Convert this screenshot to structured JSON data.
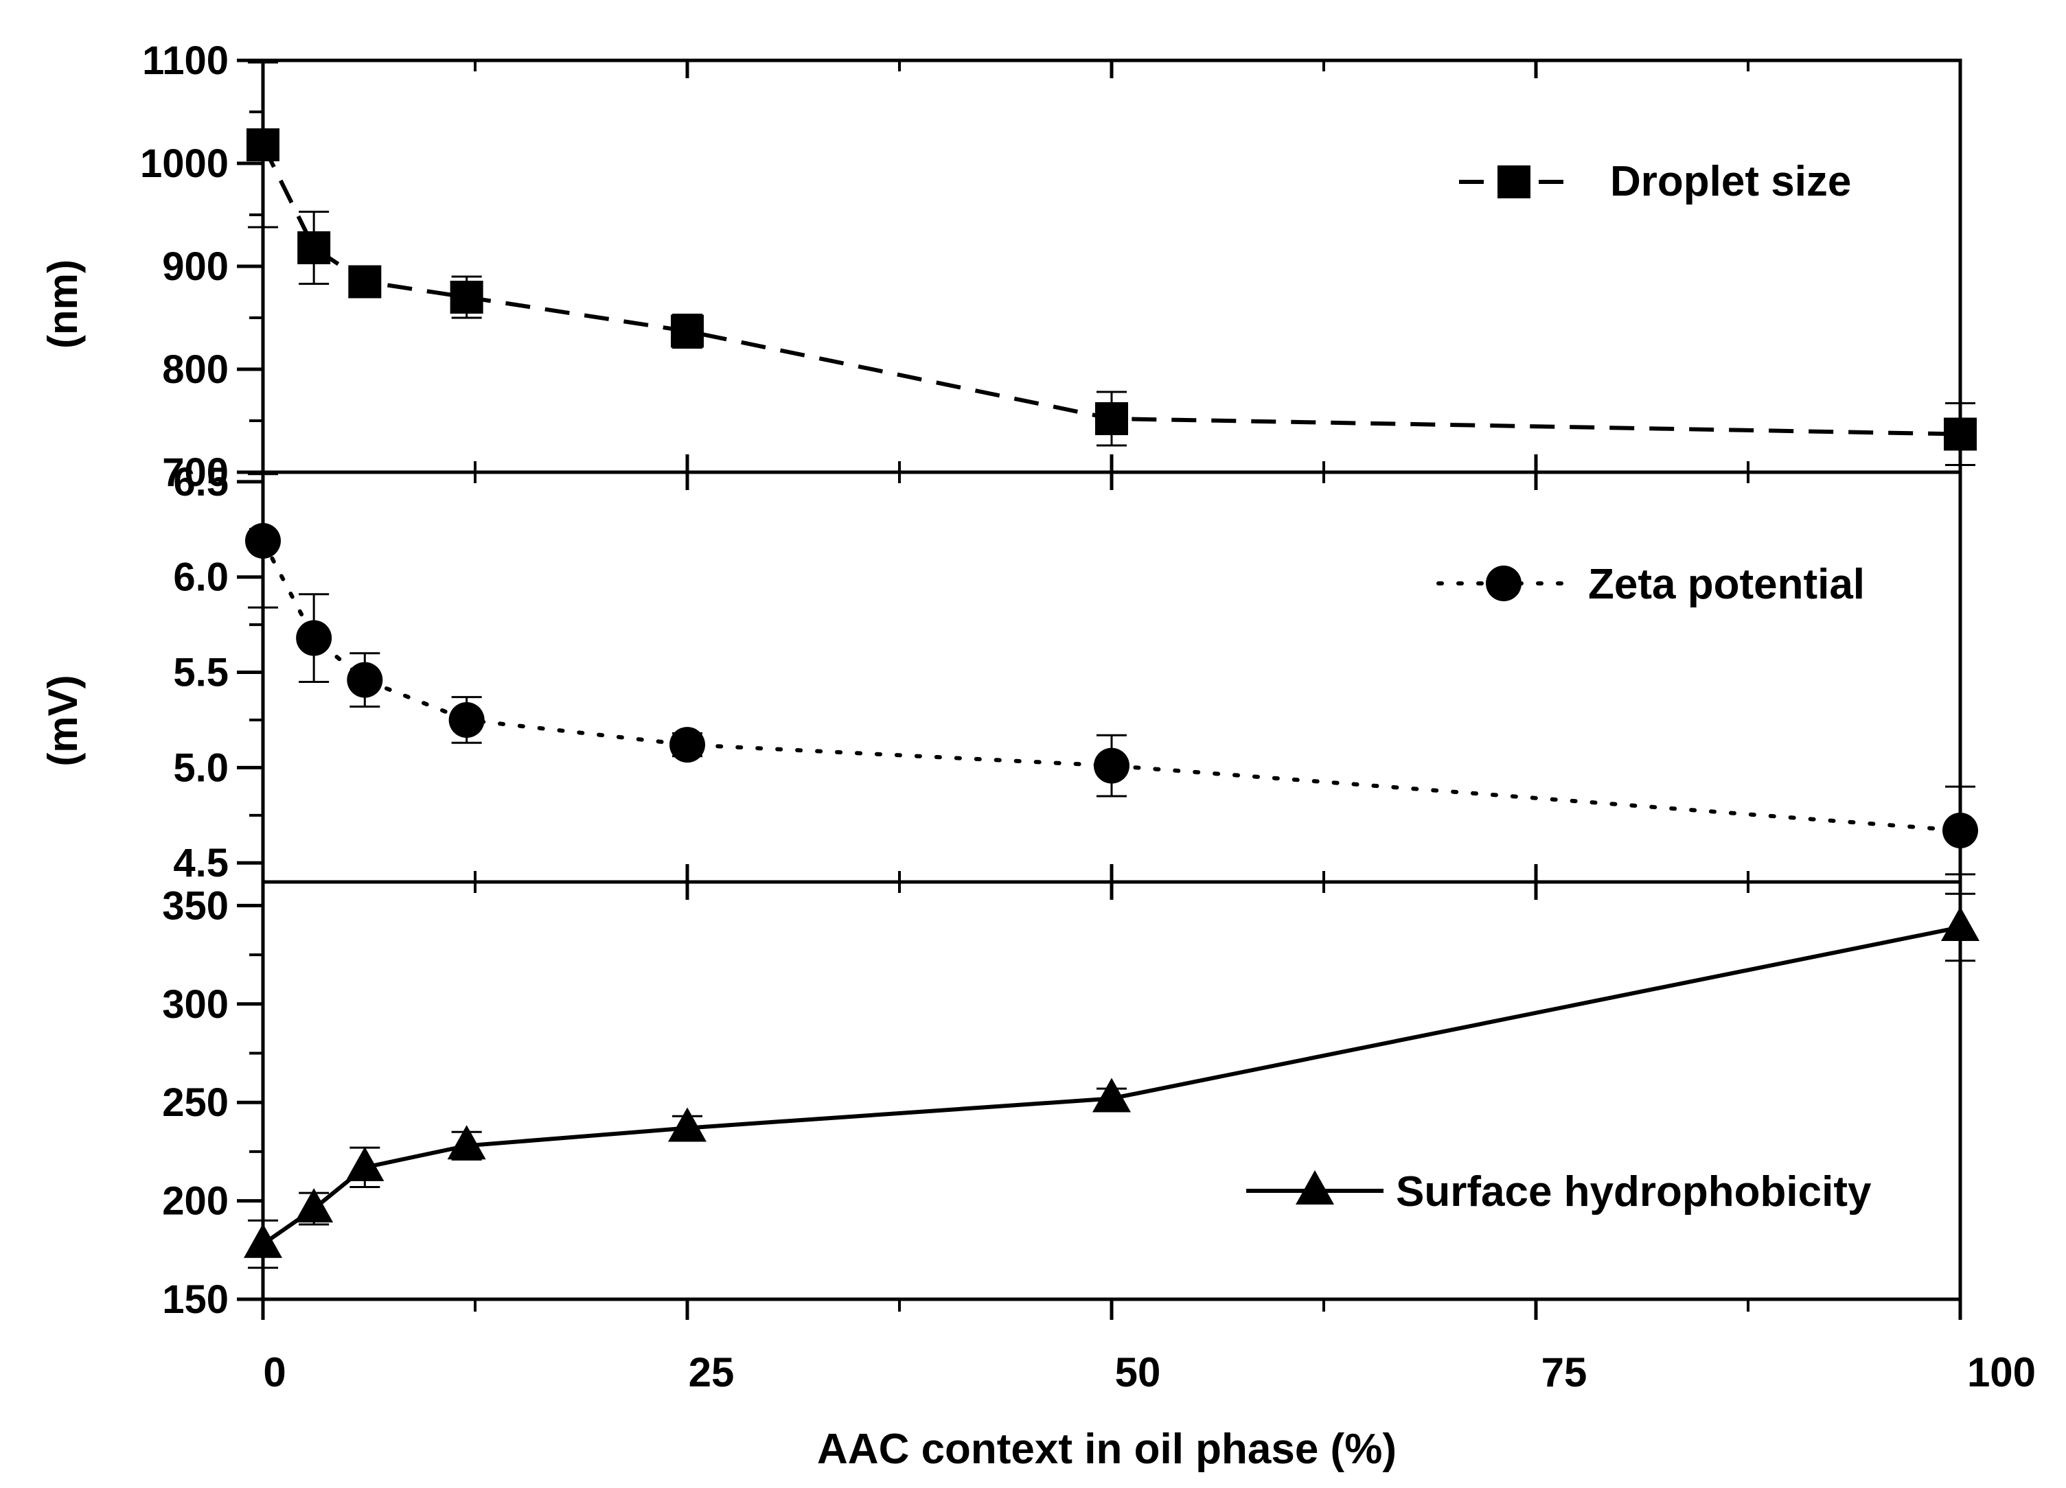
{
  "chart_data": [
    {
      "type": "line",
      "ylabel": "(nm)",
      "ylim": [
        700,
        1100
      ],
      "yticks": [
        "700",
        "800",
        "900",
        "1000",
        "1100"
      ],
      "series": [
        {
          "name": "Droplet size",
          "line_style": "dashed",
          "marker": "square",
          "x": [
            0,
            3,
            6,
            12,
            25,
            50,
            100
          ],
          "values": [
            1018,
            918,
            885,
            870,
            837,
            752,
            737
          ],
          "errors": [
            80,
            35,
            8,
            20,
            16,
            26,
            30
          ]
        }
      ]
    },
    {
      "type": "line",
      "ylabel": "(mV)",
      "ylim": [
        4.4,
        6.55
      ],
      "yticks": [
        "4.5",
        "5.0",
        "5.5",
        "6.0",
        "6.5"
      ],
      "series": [
        {
          "name": "Zeta potential",
          "line_style": "dotted",
          "marker": "circle",
          "x": [
            0,
            3,
            6,
            12,
            25,
            50,
            100
          ],
          "values": [
            6.19,
            5.68,
            5.46,
            5.25,
            5.12,
            5.01,
            4.67
          ],
          "errors": [
            0.35,
            0.23,
            0.14,
            0.12,
            0.06,
            0.16,
            0.23
          ]
        }
      ]
    },
    {
      "type": "line",
      "ylabel": "",
      "ylim": [
        150,
        362
      ],
      "yticks": [
        "150",
        "200",
        "250",
        "300",
        "350"
      ],
      "series": [
        {
          "name": "Surface hydrophobicity",
          "line_style": "solid",
          "marker": "triangle",
          "x": [
            0,
            3,
            6,
            12,
            25,
            50,
            100
          ],
          "values": [
            178,
            196,
            217,
            228,
            237,
            252,
            339
          ],
          "errors": [
            12,
            8,
            10,
            7,
            6,
            5,
            17
          ]
        }
      ]
    }
  ],
  "x_axis": {
    "label": "AAC context in oil phase (%)",
    "range": [
      0,
      100
    ],
    "ticks": [
      "0",
      "25",
      "50",
      "75",
      "100"
    ]
  }
}
